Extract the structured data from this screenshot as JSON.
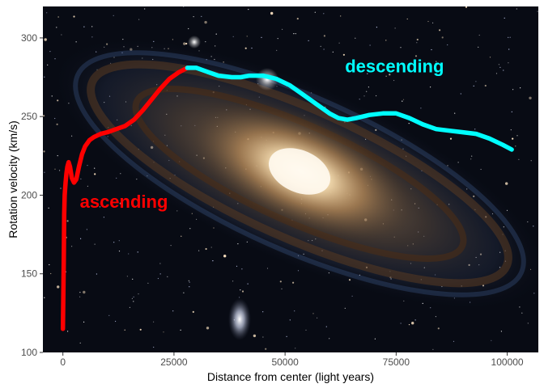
{
  "chart_data": {
    "type": "line",
    "background": "photo of a spiral galaxy",
    "xlabel": "Distance from center (light years)",
    "ylabel": "Rotation velocity (km/s)",
    "xlim": [
      -4500,
      107000
    ],
    "ylim": [
      100,
      320
    ],
    "xticks": [
      0,
      25000,
      50000,
      75000,
      100000
    ],
    "yticks": [
      100,
      150,
      200,
      250,
      300
    ],
    "grid": false,
    "legend": "none",
    "series": [
      {
        "color": "#ff0000",
        "x": [
          0,
          100,
          200,
          300,
          400,
          600,
          800,
          1000,
          1300,
          1600,
          2000,
          2500,
          3000,
          3600,
          4300,
          5000,
          6000,
          7000,
          8500,
          10000,
          12000,
          14000,
          16000,
          18000,
          20000,
          22000,
          24000,
          26000,
          28000
        ],
        "y": [
          115,
          135,
          160,
          188,
          200,
          208,
          214,
          218,
          221,
          218,
          211,
          208,
          210,
          218,
          226,
          231,
          235,
          237,
          239,
          240,
          242,
          244,
          248,
          254,
          261,
          268,
          274,
          278,
          281
        ]
      },
      {
        "color": "#00ffff",
        "x": [
          28000,
          30000,
          32000,
          35000,
          38000,
          40000,
          42000,
          45000,
          48000,
          51000,
          54000,
          57000,
          60000,
          62000,
          64000,
          66000,
          69000,
          72000,
          75000,
          78000,
          81000,
          84000,
          87000,
          90000,
          93000,
          96000,
          99000,
          101000
        ],
        "y": [
          281,
          281,
          279,
          276,
          275,
          275,
          276,
          276,
          274,
          270,
          264,
          258,
          252,
          249,
          248,
          249,
          251,
          252,
          252,
          249,
          245,
          242,
          241,
          240,
          239,
          236,
          232,
          229
        ]
      }
    ],
    "annotations": [
      {
        "text": "ascending",
        "x": 3800,
        "y": 192,
        "color": "#ff0000"
      },
      {
        "text": "descending",
        "x": 63500,
        "y": 278,
        "color": "#00ffff"
      }
    ]
  }
}
